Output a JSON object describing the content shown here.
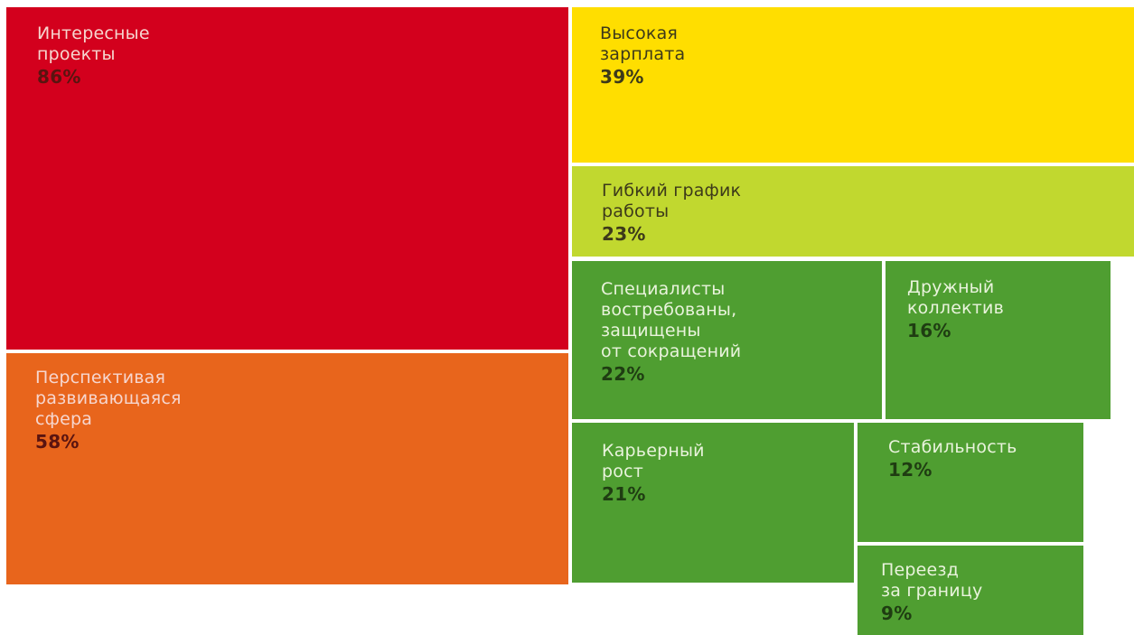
{
  "chart_data": {
    "type": "treemap",
    "items": [
      {
        "label": "Интересные\nпроекты",
        "value": 86,
        "display": "86%",
        "color": "#d3001d"
      },
      {
        "label": "Перспективая\nразвивающаяся\nсфера",
        "value": 58,
        "display": "58%",
        "color": "#e8651c"
      },
      {
        "label": "Высокая\nзарплата",
        "value": 39,
        "display": "39%",
        "color": "#ffde00"
      },
      {
        "label": "Гибкий график\nработы",
        "value": 23,
        "display": "23%",
        "color": "#c1d82f"
      },
      {
        "label": "Специалисты\nвостребованы,\nзащищены\nот сокращений",
        "value": 22,
        "display": "22%",
        "color": "#4f9e31"
      },
      {
        "label": "Дружный\nколлектив",
        "value": 16,
        "display": "16%",
        "color": "#4f9e31"
      },
      {
        "label": "Карьерный\nрост",
        "value": 21,
        "display": "21%",
        "color": "#4f9e31"
      },
      {
        "label": "Стабильность",
        "value": 12,
        "display": "12%",
        "color": "#4f9e31"
      },
      {
        "label": "Переезд\nза границу",
        "value": 9,
        "display": "9%",
        "color": "#4f9e31"
      }
    ]
  }
}
